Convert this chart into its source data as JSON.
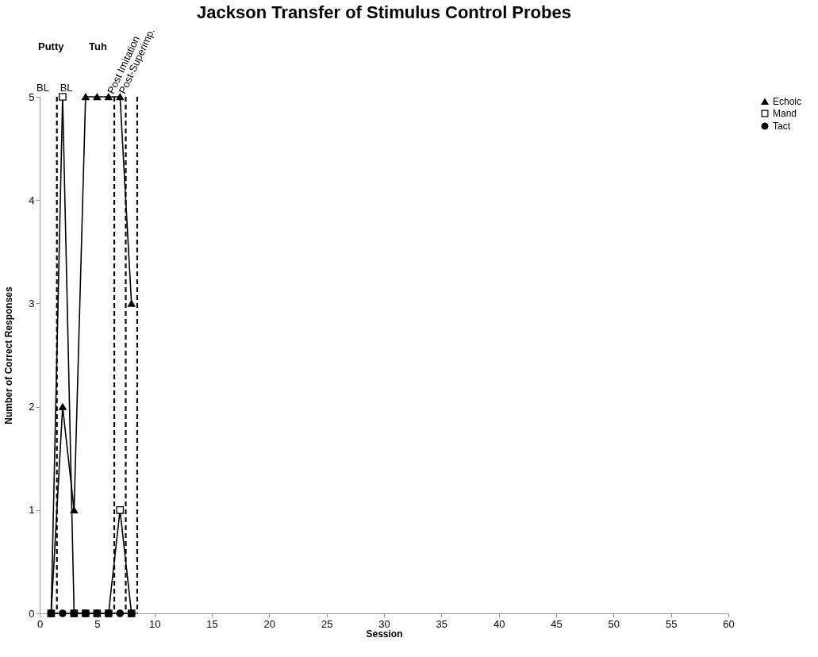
{
  "chart_data": {
    "type": "line",
    "title": "Jackson Transfer of Stimulus Control Probes",
    "xlabel": "Session",
    "ylabel": "Number of Correct Responses",
    "x": [
      1,
      2,
      3,
      4,
      5,
      6,
      7,
      8
    ],
    "series": [
      {
        "name": "Echoic",
        "color": "#000000",
        "marker": "triangle",
        "values": [
          0,
          2,
          1,
          5,
          5,
          5,
          5,
          3
        ]
      },
      {
        "name": "Mand",
        "color": "#000000",
        "marker": "square",
        "values": [
          0,
          5,
          0,
          0,
          0,
          0,
          1,
          0
        ]
      },
      {
        "name": "Tact",
        "color": "#000000",
        "marker": "circle",
        "values": [
          0,
          0,
          0,
          0,
          0,
          0,
          0,
          0
        ]
      }
    ],
    "xlim": [
      0,
      60
    ],
    "xticks": [
      0,
      5,
      10,
      15,
      20,
      25,
      30,
      35,
      40,
      45,
      50,
      55,
      60
    ],
    "ylim": [
      0,
      5
    ],
    "yticks": [
      0,
      1,
      2,
      3,
      4,
      5
    ],
    "ref_lines": [
      {
        "axis": "x",
        "value": 1.5,
        "label": "BL",
        "color": "#000000",
        "line_style": "dashed"
      },
      {
        "axis": "x",
        "value": 6.5,
        "label": "Post Imitation",
        "color": "#000000",
        "line_style": "dashed"
      },
      {
        "axis": "x",
        "value": 7.5,
        "label": "Post-Superimp.",
        "color": "#000000",
        "line_style": "dashed"
      },
      {
        "axis": "x",
        "value": 8.5,
        "color": "#000000",
        "line_style": "dashed"
      }
    ],
    "annotations": [
      "Putty",
      "Tuh",
      "BL"
    ],
    "grid": false,
    "legend": "right"
  }
}
